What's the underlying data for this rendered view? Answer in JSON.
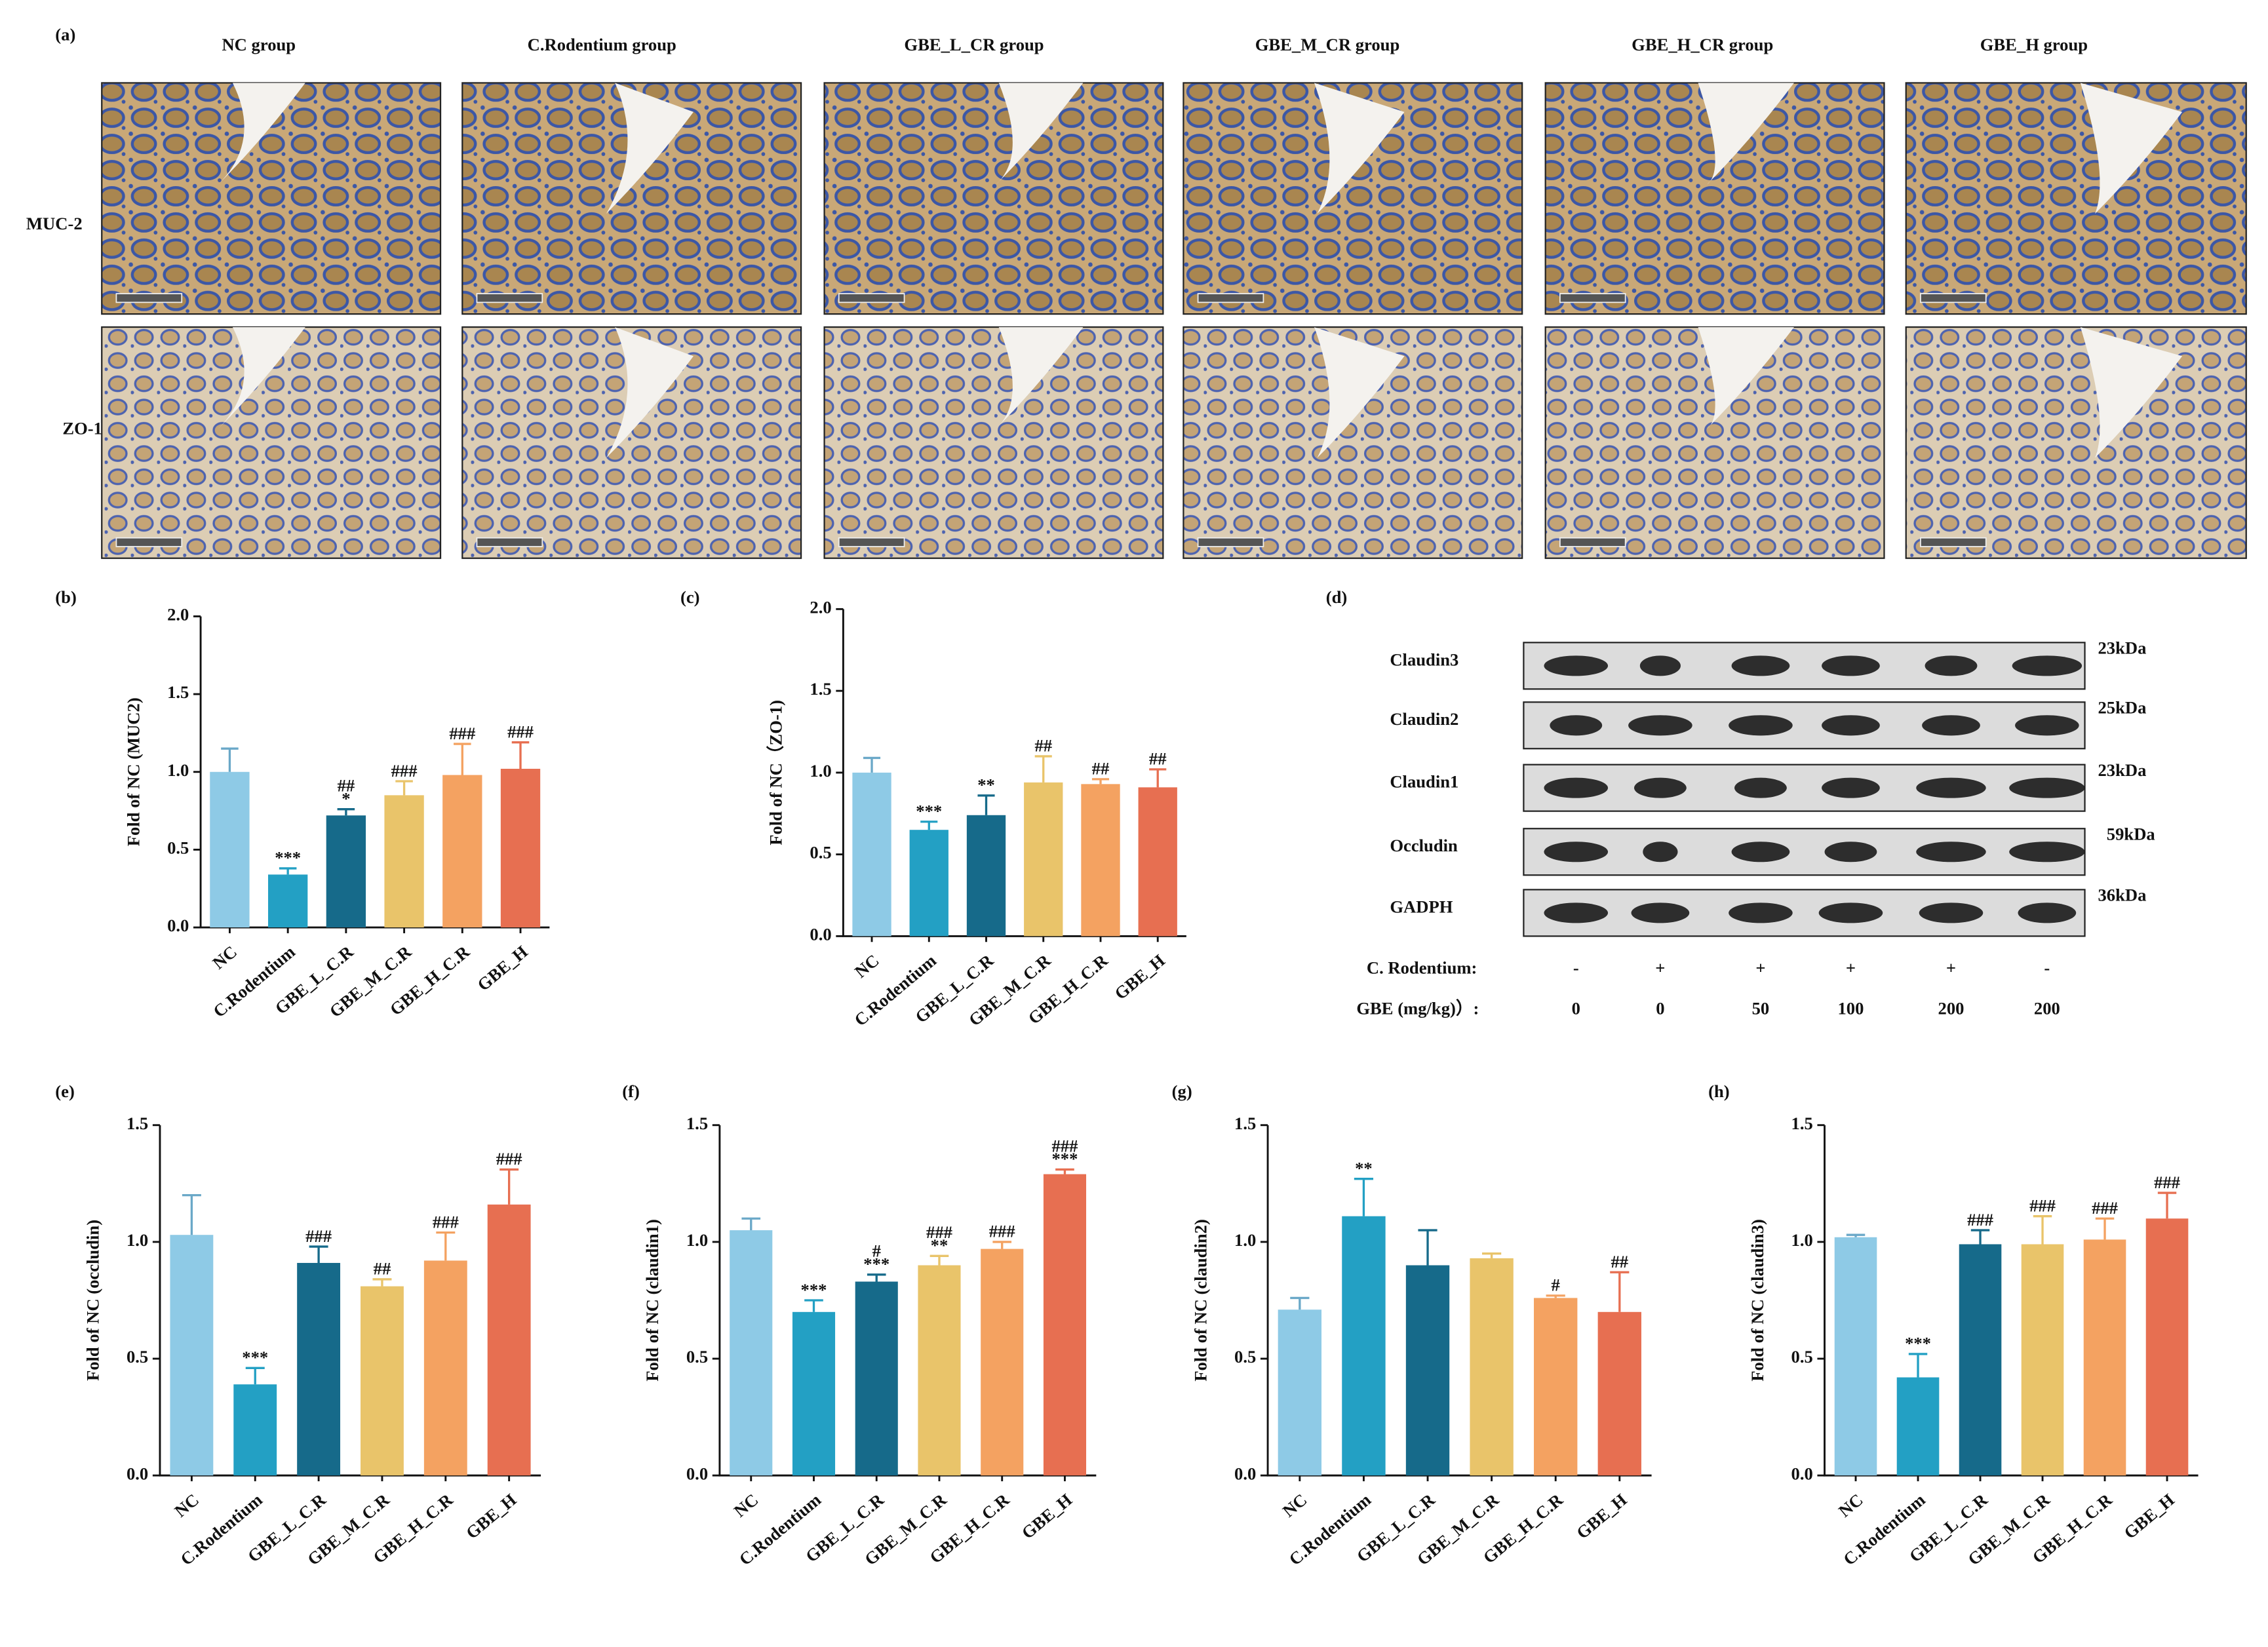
{
  "panel_a": {
    "label": "(a)",
    "groups": [
      "NC group",
      "C.Rodentium group",
      "GBE_L_CR group",
      "GBE_M_CR group",
      "GBE_H_CR group",
      "GBE_H group"
    ],
    "rows": [
      "MUC-2",
      "ZO-1"
    ]
  },
  "panel_d": {
    "label": "(d)",
    "proteins": [
      "Claudin3",
      "Claudin2",
      "Claudin1",
      "Occludin",
      "GADPH"
    ],
    "sizes": [
      "23kDa",
      "25kDa",
      "23kDa",
      "59kDa",
      "36kDa"
    ],
    "conditions": [
      {
        "name": "C. Rodentium:",
        "values": [
          "-",
          "+",
          "+",
          "+",
          "+",
          "-"
        ]
      },
      {
        "name": "GBE (mg/kg)）:",
        "values": [
          "0",
          "0",
          "50",
          "100",
          "200",
          "200"
        ]
      }
    ]
  },
  "chart_data": [
    {
      "type": "bar",
      "panel": "(b)",
      "y_label": "Fold of  NC (MUC2)",
      "categories": [
        "NC",
        "C.Rodentium",
        "GBE_L_C.R",
        "GBE_M_C.R",
        "GBE_H_C.R",
        "GBE_H"
      ],
      "values": [
        1.0,
        0.34,
        0.72,
        0.85,
        0.98,
        1.02
      ],
      "errors": [
        0.15,
        0.04,
        0.04,
        0.09,
        0.2,
        0.17
      ],
      "annotations": [
        [],
        [
          "***"
        ],
        [
          "##",
          "*"
        ],
        [
          "###"
        ],
        [
          "###"
        ],
        [
          "###"
        ]
      ],
      "colors": [
        "#8ecae6",
        "#23a0c4",
        "#166a8a",
        "#e9c46a",
        "#f4a261",
        "#e76f51"
      ],
      "ylim": [
        0,
        2
      ],
      "yticks": [
        {
          "value": 0,
          "label": "0.0"
        },
        0.5,
        {
          "value": 1,
          "label": "1.0"
        },
        1.5,
        {
          "value": 2,
          "label": "2.0"
        }
      ]
    },
    {
      "type": "bar",
      "panel": "(c)",
      "y_label": "Fold of NC（ZO-1)",
      "categories": [
        "NC",
        "C.Rodentium",
        "GBE_L_C.R",
        "GBE_M_C.R",
        "GBE_H_C.R",
        "GBE_H"
      ],
      "values": [
        1.0,
        0.65,
        0.74,
        0.94,
        0.93,
        0.91
      ],
      "errors": [
        0.09,
        0.05,
        0.12,
        0.16,
        0.03,
        0.11
      ],
      "annotations": [
        [],
        [
          "***"
        ],
        [
          "**"
        ],
        [
          "##"
        ],
        [
          "##"
        ],
        [
          "##"
        ]
      ],
      "colors": [
        "#8ecae6",
        "#23a0c4",
        "#166a8a",
        "#e9c46a",
        "#f4a261",
        "#e76f51"
      ],
      "ylim": [
        0,
        2
      ],
      "yticks": [
        {
          "value": 0,
          "label": "0.0"
        },
        0.5,
        {
          "value": 1,
          "label": "1.0"
        },
        1.5,
        {
          "value": 2,
          "label": "2.0"
        }
      ]
    },
    {
      "type": "bar",
      "panel": "(e)",
      "y_label": "Fold of  NC (occludin)",
      "categories": [
        "NC",
        "C.Rodentium",
        "GBE_L_C.R",
        "GBE_M_C.R",
        "GBE_H_C.R",
        "GBE_H"
      ],
      "values": [
        1.03,
        0.39,
        0.91,
        0.81,
        0.92,
        1.16
      ],
      "errors": [
        0.17,
        0.07,
        0.07,
        0.03,
        0.12,
        0.15
      ],
      "annotations": [
        [],
        [
          "***"
        ],
        [
          "###"
        ],
        [
          "##"
        ],
        [
          "###"
        ],
        [
          "###"
        ]
      ],
      "colors": [
        "#8ecae6",
        "#23a0c4",
        "#166a8a",
        "#e9c46a",
        "#f4a261",
        "#e76f51"
      ],
      "ylim": [
        0,
        1.5
      ],
      "yticks": [
        {
          "value": 0,
          "label": "0.0"
        },
        0.5,
        {
          "value": 1,
          "label": "1.0"
        },
        1.5
      ]
    },
    {
      "type": "bar",
      "panel": "(f)",
      "y_label": "Fold of  NC (claudin1)",
      "categories": [
        "NC",
        "C.Rodentium",
        "GBE_L_C.R",
        "GBE_M_C.R",
        "GBE_H_C.R",
        "GBE_H"
      ],
      "values": [
        1.05,
        0.7,
        0.83,
        0.9,
        0.97,
        1.29
      ],
      "errors": [
        0.05,
        0.05,
        0.03,
        0.04,
        0.03,
        0.02
      ],
      "annotations": [
        [],
        [
          "***"
        ],
        [
          "#",
          "***"
        ],
        [
          "###",
          "**"
        ],
        [
          "###"
        ],
        [
          "###",
          "***"
        ]
      ],
      "colors": [
        "#8ecae6",
        "#23a0c4",
        "#166a8a",
        "#e9c46a",
        "#f4a261",
        "#e76f51"
      ],
      "ylim": [
        0,
        1.5
      ],
      "yticks": [
        {
          "value": 0,
          "label": "0.0"
        },
        0.5,
        {
          "value": 1,
          "label": "1.0"
        },
        1.5
      ]
    },
    {
      "type": "bar",
      "panel": "(g)",
      "y_label": "Fold of  NC (claudin2)",
      "categories": [
        "NC",
        "C.Rodentium",
        "GBE_L_C.R",
        "GBE_M_C.R",
        "GBE_H_C.R",
        "GBE_H"
      ],
      "values": [
        0.71,
        1.11,
        0.9,
        0.93,
        0.76,
        0.7
      ],
      "errors": [
        0.05,
        0.16,
        0.15,
        0.02,
        0.01,
        0.17
      ],
      "annotations": [
        [],
        [
          "**"
        ],
        [],
        [],
        [
          "#"
        ],
        [
          "##"
        ]
      ],
      "colors": [
        "#8ecae6",
        "#23a0c4",
        "#166a8a",
        "#e9c46a",
        "#f4a261",
        "#e76f51"
      ],
      "ylim": [
        0,
        1.5
      ],
      "yticks": [
        {
          "value": 0,
          "label": "0.0"
        },
        0.5,
        {
          "value": 1,
          "label": "1.0"
        },
        1.5
      ]
    },
    {
      "type": "bar",
      "panel": "(h)",
      "y_label": "Fold of  NC (claudin3)",
      "categories": [
        "NC",
        "C.Rodentium",
        "GBE_L_C.R",
        "GBE_M_C.R",
        "GBE_H_C.R",
        "GBE_H"
      ],
      "values": [
        1.02,
        0.42,
        0.99,
        0.99,
        1.01,
        1.1
      ],
      "errors": [
        0.01,
        0.1,
        0.06,
        0.12,
        0.09,
        0.11
      ],
      "annotations": [
        [],
        [
          "***"
        ],
        [
          "###"
        ],
        [
          "###"
        ],
        [
          "###"
        ],
        [
          "###"
        ]
      ],
      "colors": [
        "#8ecae6",
        "#23a0c4",
        "#166a8a",
        "#e9c46a",
        "#f4a261",
        "#e76f51"
      ],
      "ylim": [
        0,
        1.5
      ],
      "yticks": [
        {
          "value": 0,
          "label": "0.0"
        },
        0.5,
        {
          "value": 1,
          "label": "1.0"
        },
        1.5
      ]
    }
  ]
}
